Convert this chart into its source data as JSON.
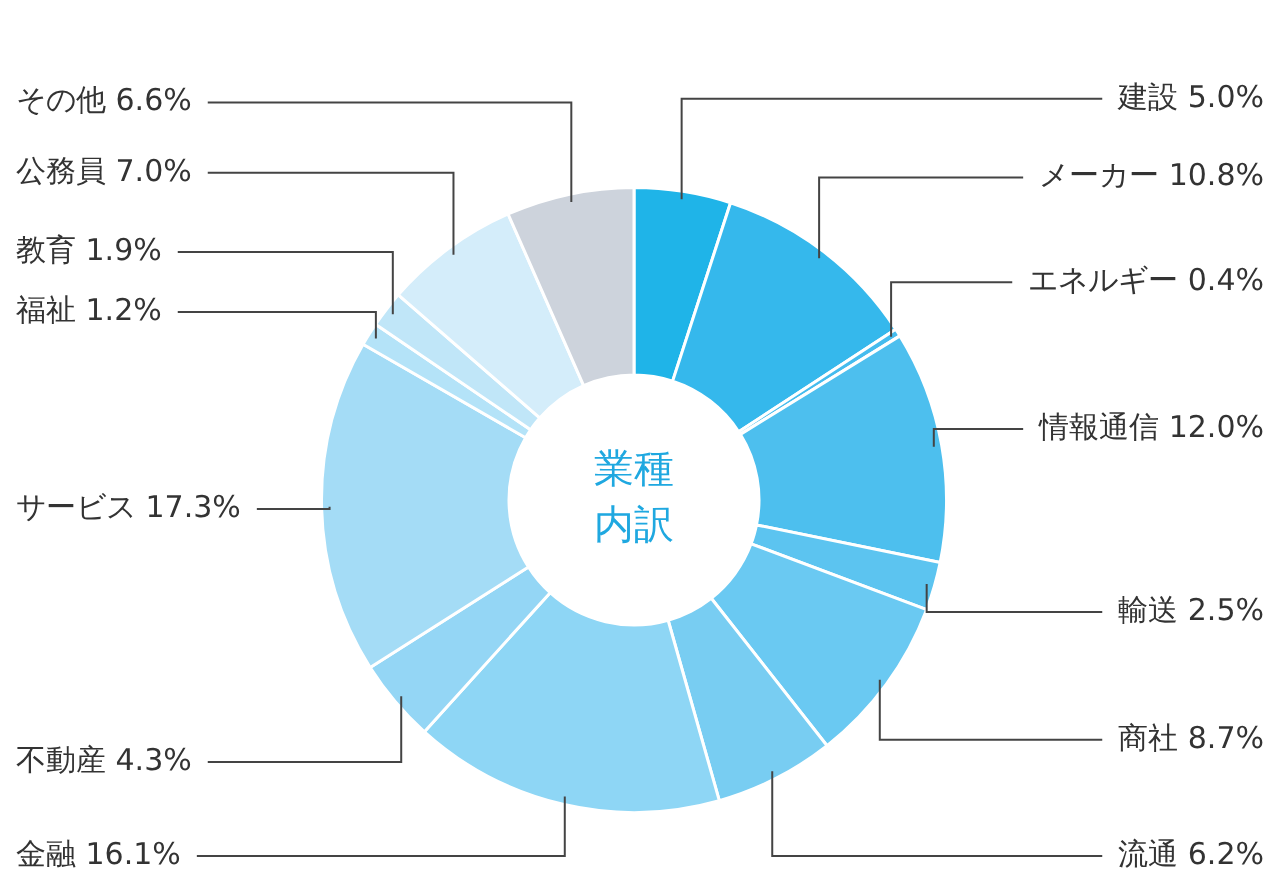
{
  "chart_data": {
    "type": "donut",
    "title": "業種内訳",
    "categories": [
      "建設",
      "メーカー",
      "エネルギー",
      "情報通信",
      "輸送",
      "商社",
      "流通",
      "金融",
      "不動産",
      "サービス",
      "福祉",
      "教育",
      "公務員",
      "その他"
    ],
    "values": [
      5.0,
      10.8,
      0.4,
      12.0,
      2.5,
      8.7,
      6.2,
      16.1,
      4.3,
      17.3,
      1.2,
      1.9,
      7.0,
      6.6
    ],
    "value_labels": [
      "5.0%",
      "10.8%",
      "0.4%",
      "12.0%",
      "2.5%",
      "8.7%",
      "6.2%",
      "16.1%",
      "4.3%",
      "17.3%",
      "1.2%",
      "1.9%",
      "7.0%",
      "6.6%"
    ],
    "colors": [
      "#1fb4e8",
      "#35b8ec",
      "#45bcee",
      "#4dbfee",
      "#5cc4f0",
      "#6ac9f2",
      "#78cdf2",
      "#8ed6f5",
      "#94d6f5",
      "#a4dcf6",
      "#b4e3f8",
      "#c0e6f8",
      "#d4edfa",
      "#cdd3dc"
    ],
    "legend": false
  }
}
